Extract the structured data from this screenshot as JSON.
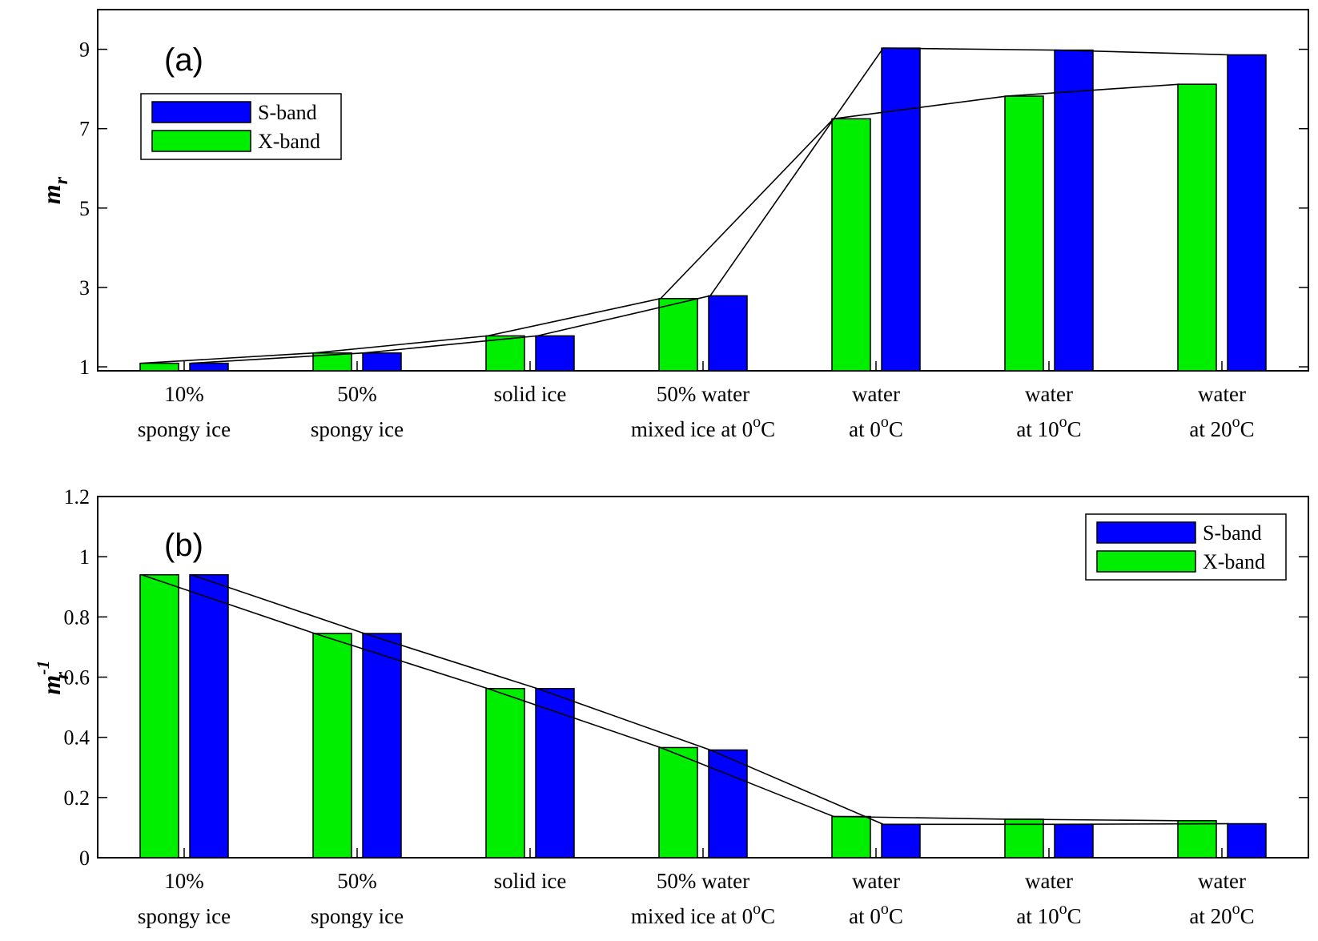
{
  "colors": {
    "s_band": "#0000ff",
    "x_band": "#00ee00",
    "axis": "#000000"
  },
  "chart_data": [
    {
      "type": "bar",
      "panel": "(a)",
      "ylabel": "m",
      "ylabel_sub": "r",
      "ylim": [
        0.9,
        10.0
      ],
      "yticks": [
        1,
        3,
        5,
        7,
        9
      ],
      "ytick_labels": [
        "1",
        "3",
        "5",
        "7",
        "9"
      ],
      "categories": [
        [
          "10%",
          "spongy ice"
        ],
        [
          "50%",
          "spongy ice"
        ],
        [
          "solid ice",
          ""
        ],
        [
          "50% water",
          "mixed ice at 0",
          "C"
        ],
        [
          "water",
          "at 0",
          "C"
        ],
        [
          "water",
          "at 10",
          "C"
        ],
        [
          "water",
          "at 20",
          "C"
        ]
      ],
      "series": [
        {
          "name": "X-band",
          "values": [
            1.09,
            1.35,
            1.78,
            2.72,
            7.25,
            7.82,
            8.12
          ]
        },
        {
          "name": "S-band",
          "values": [
            1.09,
            1.35,
            1.78,
            2.79,
            9.03,
            8.98,
            8.86
          ]
        }
      ],
      "legend": {
        "position": "top-left",
        "entries": [
          "S-band",
          "X-band"
        ]
      }
    },
    {
      "type": "bar",
      "panel": "(b)",
      "ylabel": "m",
      "ylabel_sub": "r",
      "ylabel_sup": "-1",
      "ylim": [
        0,
        1.2
      ],
      "yticks": [
        0,
        0.2,
        0.4,
        0.6,
        0.8,
        1.0,
        1.2
      ],
      "ytick_labels": [
        "0",
        "0.2",
        "0.4",
        "0.6",
        "0.8",
        "1",
        "1.2"
      ],
      "categories": [
        [
          "10%",
          "spongy ice"
        ],
        [
          "50%",
          "spongy ice"
        ],
        [
          "solid ice",
          ""
        ],
        [
          "50% water",
          "mixed ice at 0",
          "C"
        ],
        [
          "water",
          "at 0",
          "C"
        ],
        [
          "water",
          "at 10",
          "C"
        ],
        [
          "water",
          "at 20",
          "C"
        ]
      ],
      "series": [
        {
          "name": "X-band",
          "values": [
            0.94,
            0.745,
            0.562,
            0.366,
            0.137,
            0.128,
            0.123
          ]
        },
        {
          "name": "S-band",
          "values": [
            0.94,
            0.745,
            0.562,
            0.358,
            0.111,
            0.111,
            0.113
          ]
        }
      ],
      "legend": {
        "position": "top-right",
        "entries": [
          "S-band",
          "X-band"
        ]
      }
    }
  ],
  "degree_sup": "o"
}
